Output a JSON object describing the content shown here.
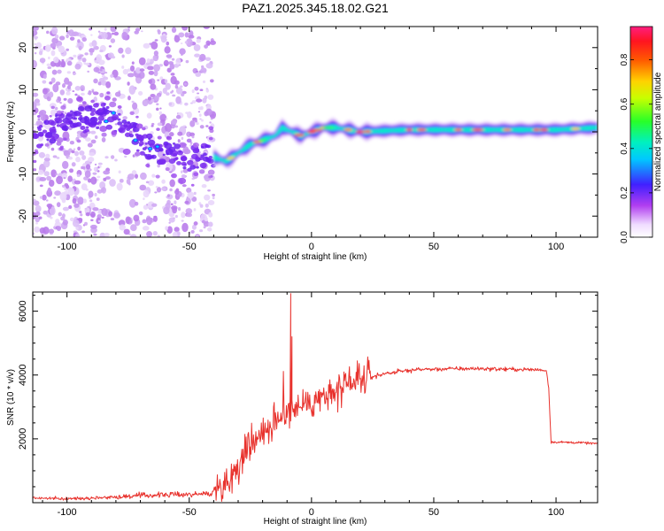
{
  "chart_data": [
    {
      "type": "heatmap",
      "title": "PAZ1.2025.345.18.02.G21",
      "xlabel": "Height of straight line (km)",
      "ylabel": "Frequency (Hz)",
      "xlim": [
        -114,
        117
      ],
      "ylim": [
        -25,
        25
      ],
      "xticks": [
        -100,
        -50,
        0,
        50,
        100
      ],
      "yticks": [
        -20,
        -10,
        0,
        10,
        20
      ],
      "xtick_labels": [
        "-100",
        "-50",
        "0",
        "50",
        "100"
      ],
      "ytick_labels": [
        "-20",
        "-10",
        "0",
        "10",
        "20"
      ],
      "colorbar": {
        "label": "Normalized spectral amplitude",
        "range": [
          0,
          0.95
        ],
        "ticks": [
          0.0,
          0.2,
          0.4,
          0.6,
          0.8
        ],
        "tick_labels": [
          "0.0",
          "0.2",
          "0.4",
          "0.6",
          "0.8"
        ],
        "colormap": "rainbow (white-violet-blue-cyan-green-yellow-red-pink)"
      },
      "ridge": {
        "description": "Frequency of the dominant spectral ridge versus height",
        "x": [
          -114,
          -100,
          -85,
          -80,
          -70,
          -65,
          -60,
          -50,
          -42,
          -40,
          -35,
          -30,
          -25,
          -20,
          -15,
          -12,
          -8,
          -4,
          0,
          5,
          10,
          20,
          40,
          60,
          80,
          100,
          117
        ],
        "y": [
          -1,
          2,
          4,
          3,
          -2,
          -4,
          -5,
          -7,
          -6,
          -6,
          -7,
          -5,
          -3,
          -2,
          -1,
          1,
          0,
          -1,
          0,
          1,
          1,
          0,
          0.5,
          0.5,
          0.5,
          0.5,
          1
        ]
      },
      "strong_segments_x_range": [
        -40,
        117
      ],
      "noisy_region_x_range": [
        -114,
        -40
      ]
    },
    {
      "type": "line",
      "title": "",
      "xlabel": "Height of straight line (km)",
      "ylabel": "SNR (10 * v/v)",
      "xlim": [
        -114,
        117
      ],
      "ylim": [
        0,
        6600
      ],
      "xticks": [
        -100,
        -50,
        0,
        50,
        100
      ],
      "yticks": [
        2000,
        4000,
        6000
      ],
      "xtick_labels": [
        "-100",
        "-50",
        "0",
        "50",
        "100"
      ],
      "ytick_labels": [
        "2000",
        "4000",
        "6000"
      ],
      "color": "#e8322d",
      "series": [
        {
          "name": "SNR",
          "x": [
            -114,
            -100,
            -80,
            -70,
            -60,
            -50,
            -42,
            -40,
            -38,
            -35,
            -32,
            -30,
            -28,
            -25,
            -22,
            -20,
            -17,
            -15,
            -12,
            -10,
            -8,
            -5,
            -2,
            0,
            3,
            5,
            8,
            10,
            13,
            15,
            18,
            20,
            23,
            25,
            28,
            30,
            35,
            40,
            45,
            50,
            60,
            70,
            80,
            90,
            96,
            97,
            98,
            100,
            110,
            117
          ],
          "y": [
            150,
            120,
            180,
            220,
            250,
            260,
            280,
            300,
            450,
            650,
            900,
            1200,
            1500,
            1800,
            2100,
            2300,
            2400,
            2300,
            2700,
            2900,
            3000,
            3050,
            3100,
            3150,
            3250,
            3350,
            3350,
            3400,
            3500,
            3600,
            3750,
            3800,
            3900,
            3950,
            4000,
            4050,
            4100,
            4150,
            4180,
            4180,
            4200,
            4200,
            4180,
            4170,
            4150,
            3600,
            1900,
            1900,
            1880,
            1850
          ]
        }
      ],
      "spikes": [
        {
          "x": -8.5,
          "y": 6550
        },
        {
          "x": -8.0,
          "y": 5200
        }
      ]
    }
  ]
}
